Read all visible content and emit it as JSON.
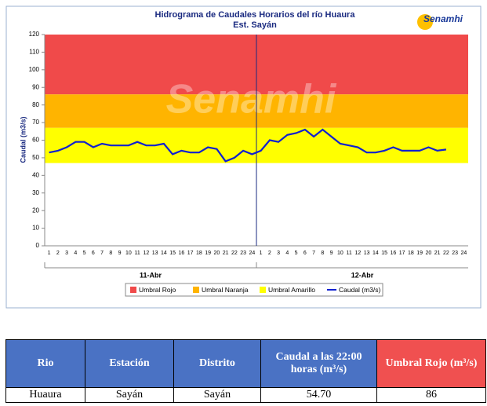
{
  "chart_data": {
    "type": "line",
    "title": "Hidrograma de Caudales Horarios del río Huaura",
    "subtitle": "Est. Sayán",
    "logo": "Senamhi",
    "y_label": "Caudal (m3/s)",
    "categories": [
      "1",
      "2",
      "3",
      "4",
      "5",
      "6",
      "7",
      "8",
      "9",
      "10",
      "11",
      "12",
      "13",
      "14",
      "15",
      "16",
      "17",
      "18",
      "19",
      "20",
      "21",
      "22",
      "23",
      "24",
      "1",
      "2",
      "3",
      "4",
      "5",
      "6",
      "7",
      "8",
      "9",
      "10",
      "11",
      "12",
      "13",
      "14",
      "15",
      "16",
      "17",
      "18",
      "19",
      "20",
      "21",
      "22",
      "23",
      "24"
    ],
    "x_groups": [
      "11-Abr",
      "12-Abr"
    ],
    "bands": [
      {
        "name": "Umbral Rojo",
        "color": "#f04a4a",
        "range": [
          86,
          120
        ]
      },
      {
        "name": "Umbral Naranja",
        "color": "#ffb400",
        "range": [
          67,
          86
        ]
      },
      {
        "name": "Umbral Amarillo",
        "color": "#ffff00",
        "range": [
          47,
          67
        ]
      }
    ],
    "series": [
      {
        "name": "Caudal (m3/s)",
        "color": "#1020d0",
        "values": [
          53,
          54,
          56,
          59,
          59,
          56,
          58,
          57,
          57,
          57,
          59,
          57,
          57,
          58,
          52,
          54,
          53,
          53,
          56,
          55,
          48,
          50,
          54,
          52,
          54,
          60,
          59,
          63,
          64,
          66,
          62,
          66,
          62,
          58,
          57,
          56,
          53,
          53,
          54,
          56,
          54,
          54,
          54,
          56,
          54,
          54.7,
          null,
          null
        ]
      }
    ],
    "ylim": [
      0,
      120
    ],
    "yticks": [
      0,
      10,
      20,
      30,
      40,
      50,
      60,
      70,
      80,
      90,
      100,
      110,
      120
    ],
    "grid": false
  },
  "table": {
    "header": [
      "Rio",
      "Estación",
      "Distrito",
      "Caudal a las 22:00 horas (m³/s)",
      "Umbral Rojo (m³/s)"
    ],
    "rows": [
      [
        "Huaura",
        "Sayán",
        "Sayán",
        "54.70",
        "86"
      ]
    ]
  }
}
